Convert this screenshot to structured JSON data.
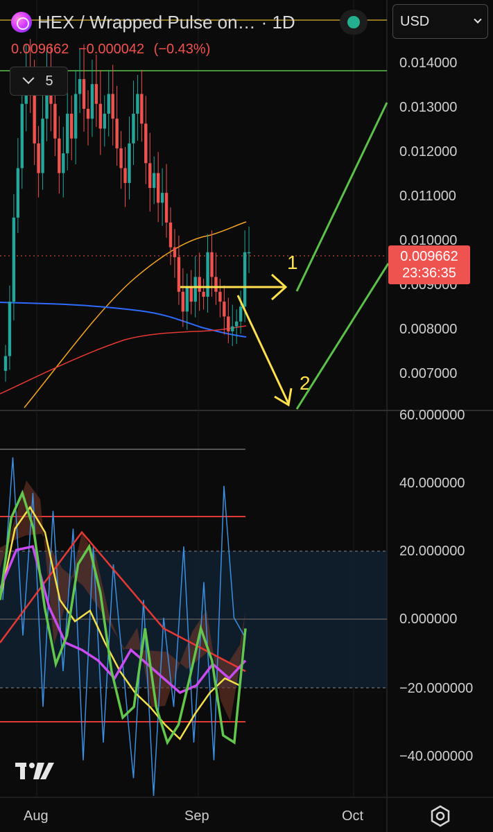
{
  "header": {
    "symbol": "HEX / Wrapped Pulse on…",
    "interval": "· 1D",
    "price": "0.009662",
    "change": "−0.000042",
    "change_pct": "(−0.43%)",
    "indicator_count": "5",
    "currency": "USD"
  },
  "price_badge": {
    "price": "0.009662",
    "countdown": "23:36:35"
  },
  "price_axis": [
    "0.014000",
    "0.013000",
    "0.012000",
    "0.011000",
    "0.010000",
    "0.009000",
    "0.008000",
    "0.007000"
  ],
  "osc_axis": [
    "60.000000",
    "40.000000",
    "20.000000",
    "0.000000",
    "−20.000000",
    "−40.000000"
  ],
  "x_axis": [
    "Aug",
    "Sep",
    "Oct"
  ],
  "annotations": {
    "arrow_1": "1",
    "arrow_2": "2"
  },
  "colors": {
    "up": "#26a69a",
    "down": "#ef5350",
    "ma_orange": "#f5a623",
    "ma_blue": "#2f6bff",
    "ma_red": "#e53935",
    "annotation_yellow": "#ffe14d",
    "trend_green": "#5cc14a",
    "osc_green": "#63c74d",
    "osc_yellow": "#f3e04a",
    "osc_purple": "#c94cf0",
    "osc_blue": "#3c8fe0"
  },
  "chart_data": {
    "type": "candlestick",
    "title": "HEX / Wrapped Pulse on… · 1D",
    "ylabel": "USD",
    "ylim": [
      0.0064,
      0.0147
    ],
    "x_ticks": [
      "Aug",
      "Sep",
      "Oct"
    ],
    "last_price": 0.009662,
    "candles_close": [
      0.0075,
      0.0086,
      0.0103,
      0.0113,
      0.0126,
      0.0133,
      0.0128,
      0.0118,
      0.0112,
      0.0123,
      0.0131,
      0.0126,
      0.0119,
      0.0112,
      0.0116,
      0.0124,
      0.0119,
      0.0128,
      0.0131,
      0.0125,
      0.0123,
      0.013,
      0.0126,
      0.0121,
      0.0124,
      0.0128,
      0.0123,
      0.0117,
      0.0113,
      0.011,
      0.0118,
      0.0124,
      0.0128,
      0.0122,
      0.0114,
      0.0109,
      0.0112,
      0.0106,
      0.0108,
      0.0102,
      0.0097,
      0.0095,
      0.0088,
      0.0084,
      0.0089,
      0.0086,
      0.0091,
      0.0088,
      0.0087,
      0.0096,
      0.0091,
      0.0088,
      0.0086,
      0.0083,
      0.008,
      0.0081,
      0.0082,
      0.0085,
      0.0096,
      0.0096
    ]
  },
  "oscillator_data": {
    "ylim": [
      -45,
      62
    ],
    "levels": {
      "upper": 30,
      "lower": -30,
      "band_top": 20,
      "band_bottom": -20,
      "zero": 0,
      "top_line": 50
    },
    "green": [
      10,
      33,
      40,
      30,
      8,
      -8,
      0,
      20,
      25,
      12,
      -10,
      -23,
      -20,
      2,
      -20,
      -30,
      -25,
      -12,
      2,
      -7,
      -28,
      -30,
      2
    ],
    "yellow": [
      10,
      30,
      36,
      29,
      10,
      4,
      7,
      -2,
      -10,
      -16,
      -20,
      -25,
      -29,
      -22,
      -16,
      -12,
      -14
    ],
    "purple": [
      13,
      24,
      25,
      8,
      -2,
      -4,
      -7,
      -12,
      -4,
      -8,
      -12,
      -16,
      -14,
      -8,
      -12,
      -7
    ],
    "red_cycle": [
      -2,
      29,
      2,
      -10
    ],
    "blue": [
      10,
      50,
      0,
      40,
      -20,
      35,
      -10,
      30,
      -35,
      25,
      -30,
      20,
      -10,
      -40,
      10,
      -45,
      5,
      -20,
      25,
      -30,
      15,
      -35,
      42,
      5,
      0
    ]
  }
}
